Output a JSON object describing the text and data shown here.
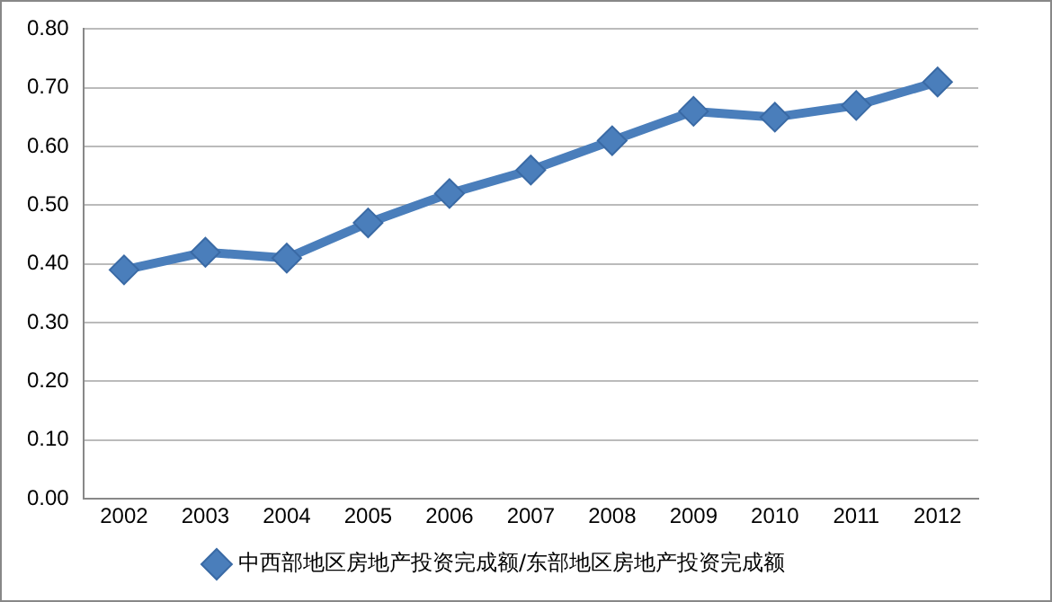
{
  "chart_data": {
    "type": "line",
    "categories": [
      "2002",
      "2003",
      "2004",
      "2005",
      "2006",
      "2007",
      "2008",
      "2009",
      "2010",
      "2011",
      "2012"
    ],
    "series": [
      {
        "name": "中西部地区房地产投资完成额/东部地区房地产投资完成额",
        "color": "#4a7ebb",
        "values": [
          0.39,
          0.42,
          0.41,
          0.47,
          0.52,
          0.56,
          0.61,
          0.66,
          0.65,
          0.67,
          0.71
        ]
      }
    ],
    "ylim": [
      0,
      0.8
    ],
    "yticks": [
      {
        "value": 0,
        "label": "0.00"
      },
      {
        "value": 0.1,
        "label": "0.10"
      },
      {
        "value": 0.2,
        "label": "0.20"
      },
      {
        "value": 0.3,
        "label": "0.30"
      },
      {
        "value": 0.4,
        "label": "0.40"
      },
      {
        "value": 0.5,
        "label": "0.50"
      },
      {
        "value": 0.6,
        "label": "0.60"
      },
      {
        "value": 0.7,
        "label": "0.70"
      },
      {
        "value": 0.8,
        "label": "0.80"
      }
    ],
    "grid": "y",
    "legend": "bottom",
    "marker": "diamond"
  }
}
